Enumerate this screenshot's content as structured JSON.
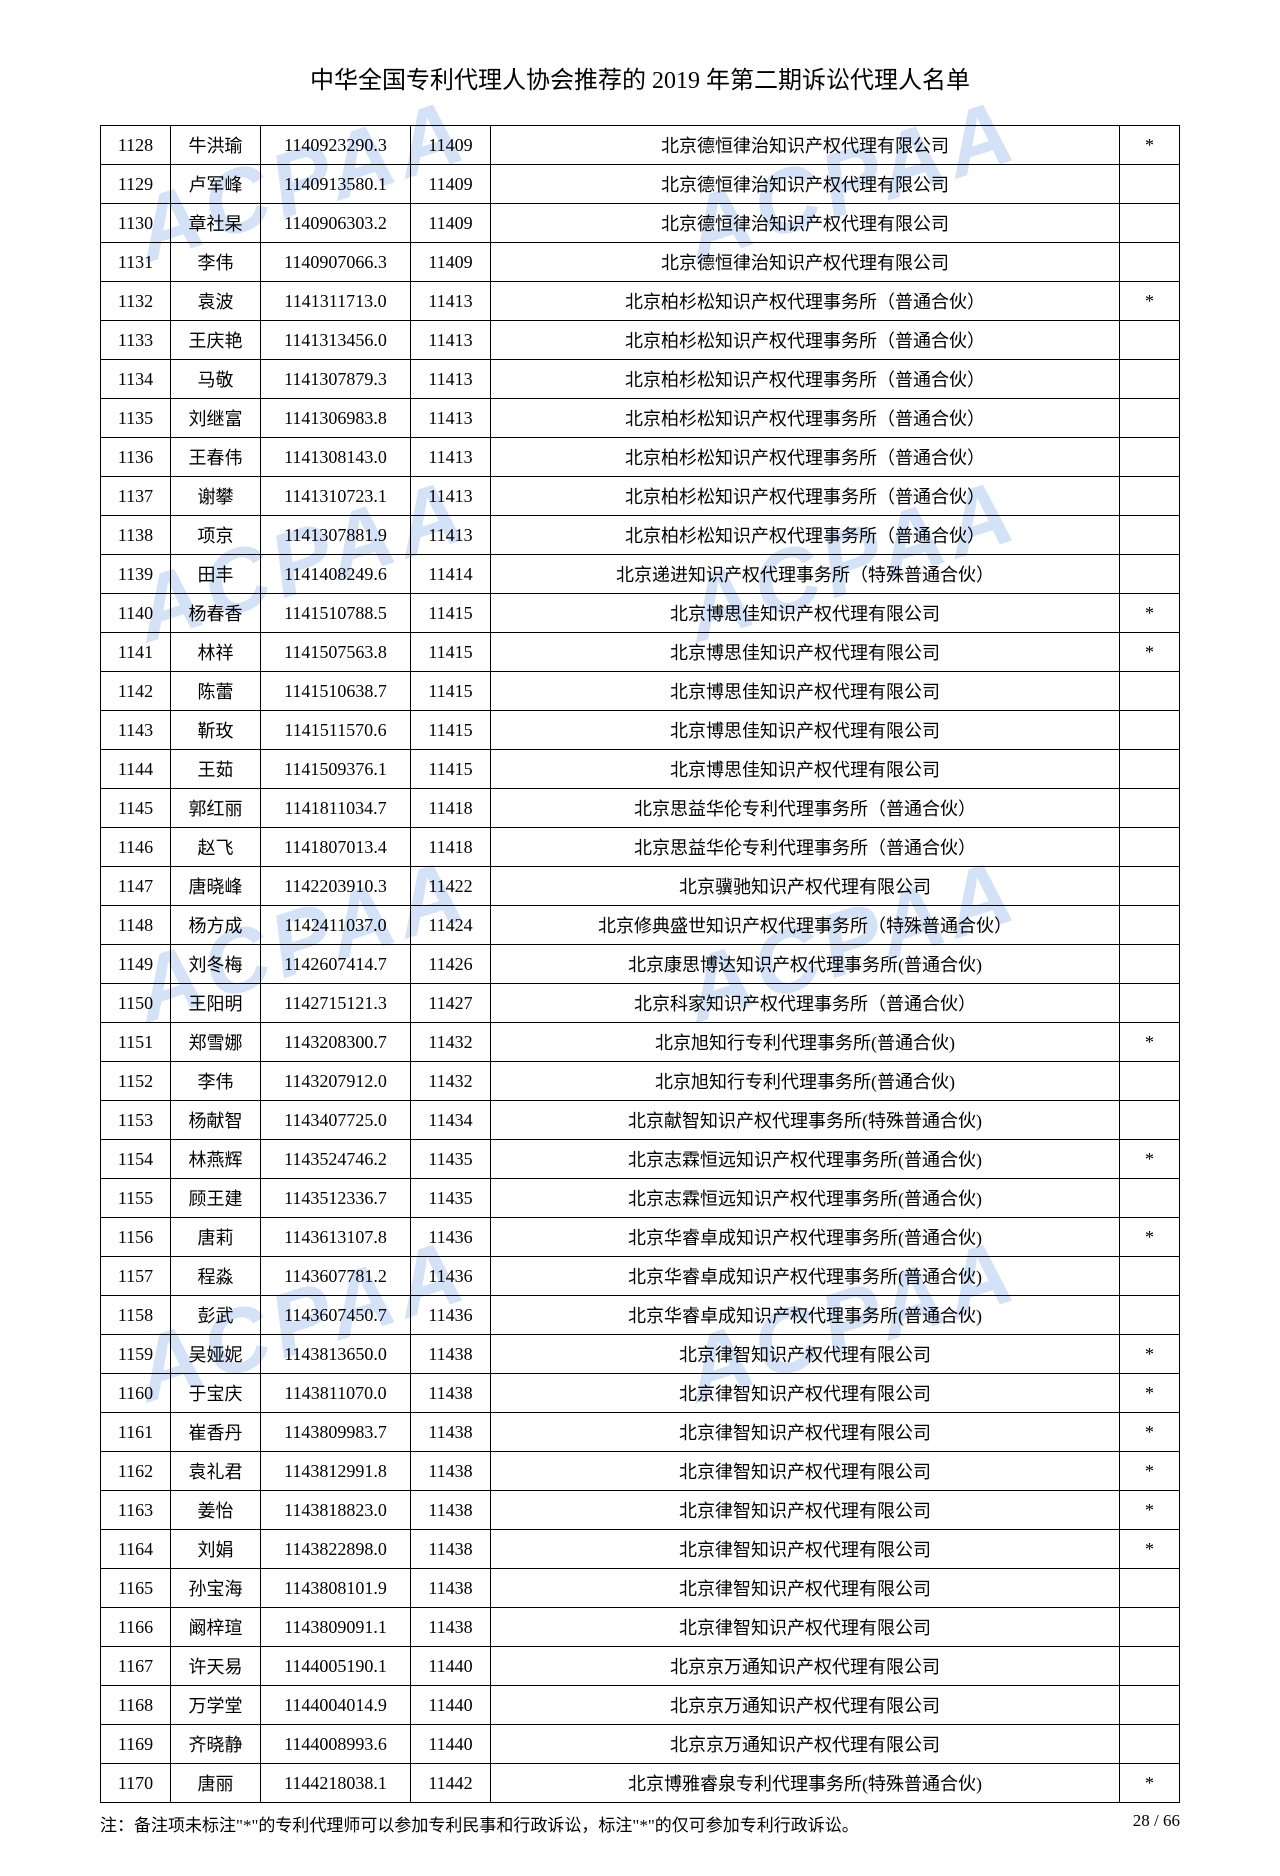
{
  "title": "中华全国专利代理人协会推荐的 2019 年第二期诉讼代理人名单",
  "footnote_prefix": "注：备注项未标注\"*\"的专利代理师可以参加专利民事和行政诉讼，标注\"*\"的仅可参加专利行政诉讼。",
  "page_num": "28 / 66",
  "watermark_text": "ACPAA",
  "rows": [
    {
      "idx": "1128",
      "name": "牛洪瑜",
      "num": "1140923290.3",
      "code": "11409",
      "firm": "北京德恒律治知识产权代理有限公司",
      "mark": "*"
    },
    {
      "idx": "1129",
      "name": "卢军峰",
      "num": "1140913580.1",
      "code": "11409",
      "firm": "北京德恒律治知识产权代理有限公司",
      "mark": ""
    },
    {
      "idx": "1130",
      "name": "章社杲",
      "num": "1140906303.2",
      "code": "11409",
      "firm": "北京德恒律治知识产权代理有限公司",
      "mark": ""
    },
    {
      "idx": "1131",
      "name": "李伟",
      "num": "1140907066.3",
      "code": "11409",
      "firm": "北京德恒律治知识产权代理有限公司",
      "mark": ""
    },
    {
      "idx": "1132",
      "name": "袁波",
      "num": "1141311713.0",
      "code": "11413",
      "firm": "北京柏杉松知识产权代理事务所（普通合伙）",
      "mark": "*"
    },
    {
      "idx": "1133",
      "name": "王庆艳",
      "num": "1141313456.0",
      "code": "11413",
      "firm": "北京柏杉松知识产权代理事务所（普通合伙）",
      "mark": ""
    },
    {
      "idx": "1134",
      "name": "马敬",
      "num": "1141307879.3",
      "code": "11413",
      "firm": "北京柏杉松知识产权代理事务所（普通合伙）",
      "mark": ""
    },
    {
      "idx": "1135",
      "name": "刘继富",
      "num": "1141306983.8",
      "code": "11413",
      "firm": "北京柏杉松知识产权代理事务所（普通合伙）",
      "mark": ""
    },
    {
      "idx": "1136",
      "name": "王春伟",
      "num": "1141308143.0",
      "code": "11413",
      "firm": "北京柏杉松知识产权代理事务所（普通合伙）",
      "mark": ""
    },
    {
      "idx": "1137",
      "name": "谢攀",
      "num": "1141310723.1",
      "code": "11413",
      "firm": "北京柏杉松知识产权代理事务所（普通合伙）",
      "mark": ""
    },
    {
      "idx": "1138",
      "name": "项京",
      "num": "1141307881.9",
      "code": "11413",
      "firm": "北京柏杉松知识产权代理事务所（普通合伙）",
      "mark": ""
    },
    {
      "idx": "1139",
      "name": "田丰",
      "num": "1141408249.6",
      "code": "11414",
      "firm": "北京递进知识产权代理事务所（特殊普通合伙）",
      "mark": ""
    },
    {
      "idx": "1140",
      "name": "杨春香",
      "num": "1141510788.5",
      "code": "11415",
      "firm": "北京博思佳知识产权代理有限公司",
      "mark": "*"
    },
    {
      "idx": "1141",
      "name": "林祥",
      "num": "1141507563.8",
      "code": "11415",
      "firm": "北京博思佳知识产权代理有限公司",
      "mark": "*"
    },
    {
      "idx": "1142",
      "name": "陈蕾",
      "num": "1141510638.7",
      "code": "11415",
      "firm": "北京博思佳知识产权代理有限公司",
      "mark": ""
    },
    {
      "idx": "1143",
      "name": "靳玫",
      "num": "1141511570.6",
      "code": "11415",
      "firm": "北京博思佳知识产权代理有限公司",
      "mark": ""
    },
    {
      "idx": "1144",
      "name": "王茹",
      "num": "1141509376.1",
      "code": "11415",
      "firm": "北京博思佳知识产权代理有限公司",
      "mark": ""
    },
    {
      "idx": "1145",
      "name": "郭红丽",
      "num": "1141811034.7",
      "code": "11418",
      "firm": "北京思益华伦专利代理事务所（普通合伙）",
      "mark": ""
    },
    {
      "idx": "1146",
      "name": "赵飞",
      "num": "1141807013.4",
      "code": "11418",
      "firm": "北京思益华伦专利代理事务所（普通合伙）",
      "mark": ""
    },
    {
      "idx": "1147",
      "name": "唐晓峰",
      "num": "1142203910.3",
      "code": "11422",
      "firm": "北京骥驰知识产权代理有限公司",
      "mark": ""
    },
    {
      "idx": "1148",
      "name": "杨方成",
      "num": "1142411037.0",
      "code": "11424",
      "firm": "北京修典盛世知识产权代理事务所（特殊普通合伙）",
      "mark": ""
    },
    {
      "idx": "1149",
      "name": "刘冬梅",
      "num": "1142607414.7",
      "code": "11426",
      "firm": "北京康思博达知识产权代理事务所(普通合伙)",
      "mark": ""
    },
    {
      "idx": "1150",
      "name": "王阳明",
      "num": "1142715121.3",
      "code": "11427",
      "firm": "北京科家知识产权代理事务所（普通合伙）",
      "mark": ""
    },
    {
      "idx": "1151",
      "name": "郑雪娜",
      "num": "1143208300.7",
      "code": "11432",
      "firm": "北京旭知行专利代理事务所(普通合伙)",
      "mark": "*"
    },
    {
      "idx": "1152",
      "name": "李伟",
      "num": "1143207912.0",
      "code": "11432",
      "firm": "北京旭知行专利代理事务所(普通合伙)",
      "mark": ""
    },
    {
      "idx": "1153",
      "name": "杨献智",
      "num": "1143407725.0",
      "code": "11434",
      "firm": "北京献智知识产权代理事务所(特殊普通合伙)",
      "mark": ""
    },
    {
      "idx": "1154",
      "name": "林燕辉",
      "num": "1143524746.2",
      "code": "11435",
      "firm": "北京志霖恒远知识产权代理事务所(普通合伙)",
      "mark": "*"
    },
    {
      "idx": "1155",
      "name": "顾王建",
      "num": "1143512336.7",
      "code": "11435",
      "firm": "北京志霖恒远知识产权代理事务所(普通合伙)",
      "mark": ""
    },
    {
      "idx": "1156",
      "name": "唐莉",
      "num": "1143613107.8",
      "code": "11436",
      "firm": "北京华睿卓成知识产权代理事务所(普通合伙)",
      "mark": "*"
    },
    {
      "idx": "1157",
      "name": "程淼",
      "num": "1143607781.2",
      "code": "11436",
      "firm": "北京华睿卓成知识产权代理事务所(普通合伙)",
      "mark": ""
    },
    {
      "idx": "1158",
      "name": "彭武",
      "num": "1143607450.7",
      "code": "11436",
      "firm": "北京华睿卓成知识产权代理事务所(普通合伙)",
      "mark": ""
    },
    {
      "idx": "1159",
      "name": "吴娅妮",
      "num": "1143813650.0",
      "code": "11438",
      "firm": "北京律智知识产权代理有限公司",
      "mark": "*"
    },
    {
      "idx": "1160",
      "name": "于宝庆",
      "num": "1143811070.0",
      "code": "11438",
      "firm": "北京律智知识产权代理有限公司",
      "mark": "*"
    },
    {
      "idx": "1161",
      "name": "崔香丹",
      "num": "1143809983.7",
      "code": "11438",
      "firm": "北京律智知识产权代理有限公司",
      "mark": "*"
    },
    {
      "idx": "1162",
      "name": "袁礼君",
      "num": "1143812991.8",
      "code": "11438",
      "firm": "北京律智知识产权代理有限公司",
      "mark": "*"
    },
    {
      "idx": "1163",
      "name": "姜怡",
      "num": "1143818823.0",
      "code": "11438",
      "firm": "北京律智知识产权代理有限公司",
      "mark": "*"
    },
    {
      "idx": "1164",
      "name": "刘娟",
      "num": "1143822898.0",
      "code": "11438",
      "firm": "北京律智知识产权代理有限公司",
      "mark": "*"
    },
    {
      "idx": "1165",
      "name": "孙宝海",
      "num": "1143808101.9",
      "code": "11438",
      "firm": "北京律智知识产权代理有限公司",
      "mark": ""
    },
    {
      "idx": "1166",
      "name": "阚梓瑄",
      "num": "1143809091.1",
      "code": "11438",
      "firm": "北京律智知识产权代理有限公司",
      "mark": ""
    },
    {
      "idx": "1167",
      "name": "许天易",
      "num": "1144005190.1",
      "code": "11440",
      "firm": "北京京万通知识产权代理有限公司",
      "mark": ""
    },
    {
      "idx": "1168",
      "name": "万学堂",
      "num": "1144004014.9",
      "code": "11440",
      "firm": "北京京万通知识产权代理有限公司",
      "mark": ""
    },
    {
      "idx": "1169",
      "name": "齐晓静",
      "num": "1144008993.6",
      "code": "11440",
      "firm": "北京京万通知识产权代理有限公司",
      "mark": ""
    },
    {
      "idx": "1170",
      "name": "唐丽",
      "num": "1144218038.1",
      "code": "11442",
      "firm": "北京博雅睿泉专利代理事务所(特殊普通合伙)",
      "mark": "*"
    }
  ]
}
